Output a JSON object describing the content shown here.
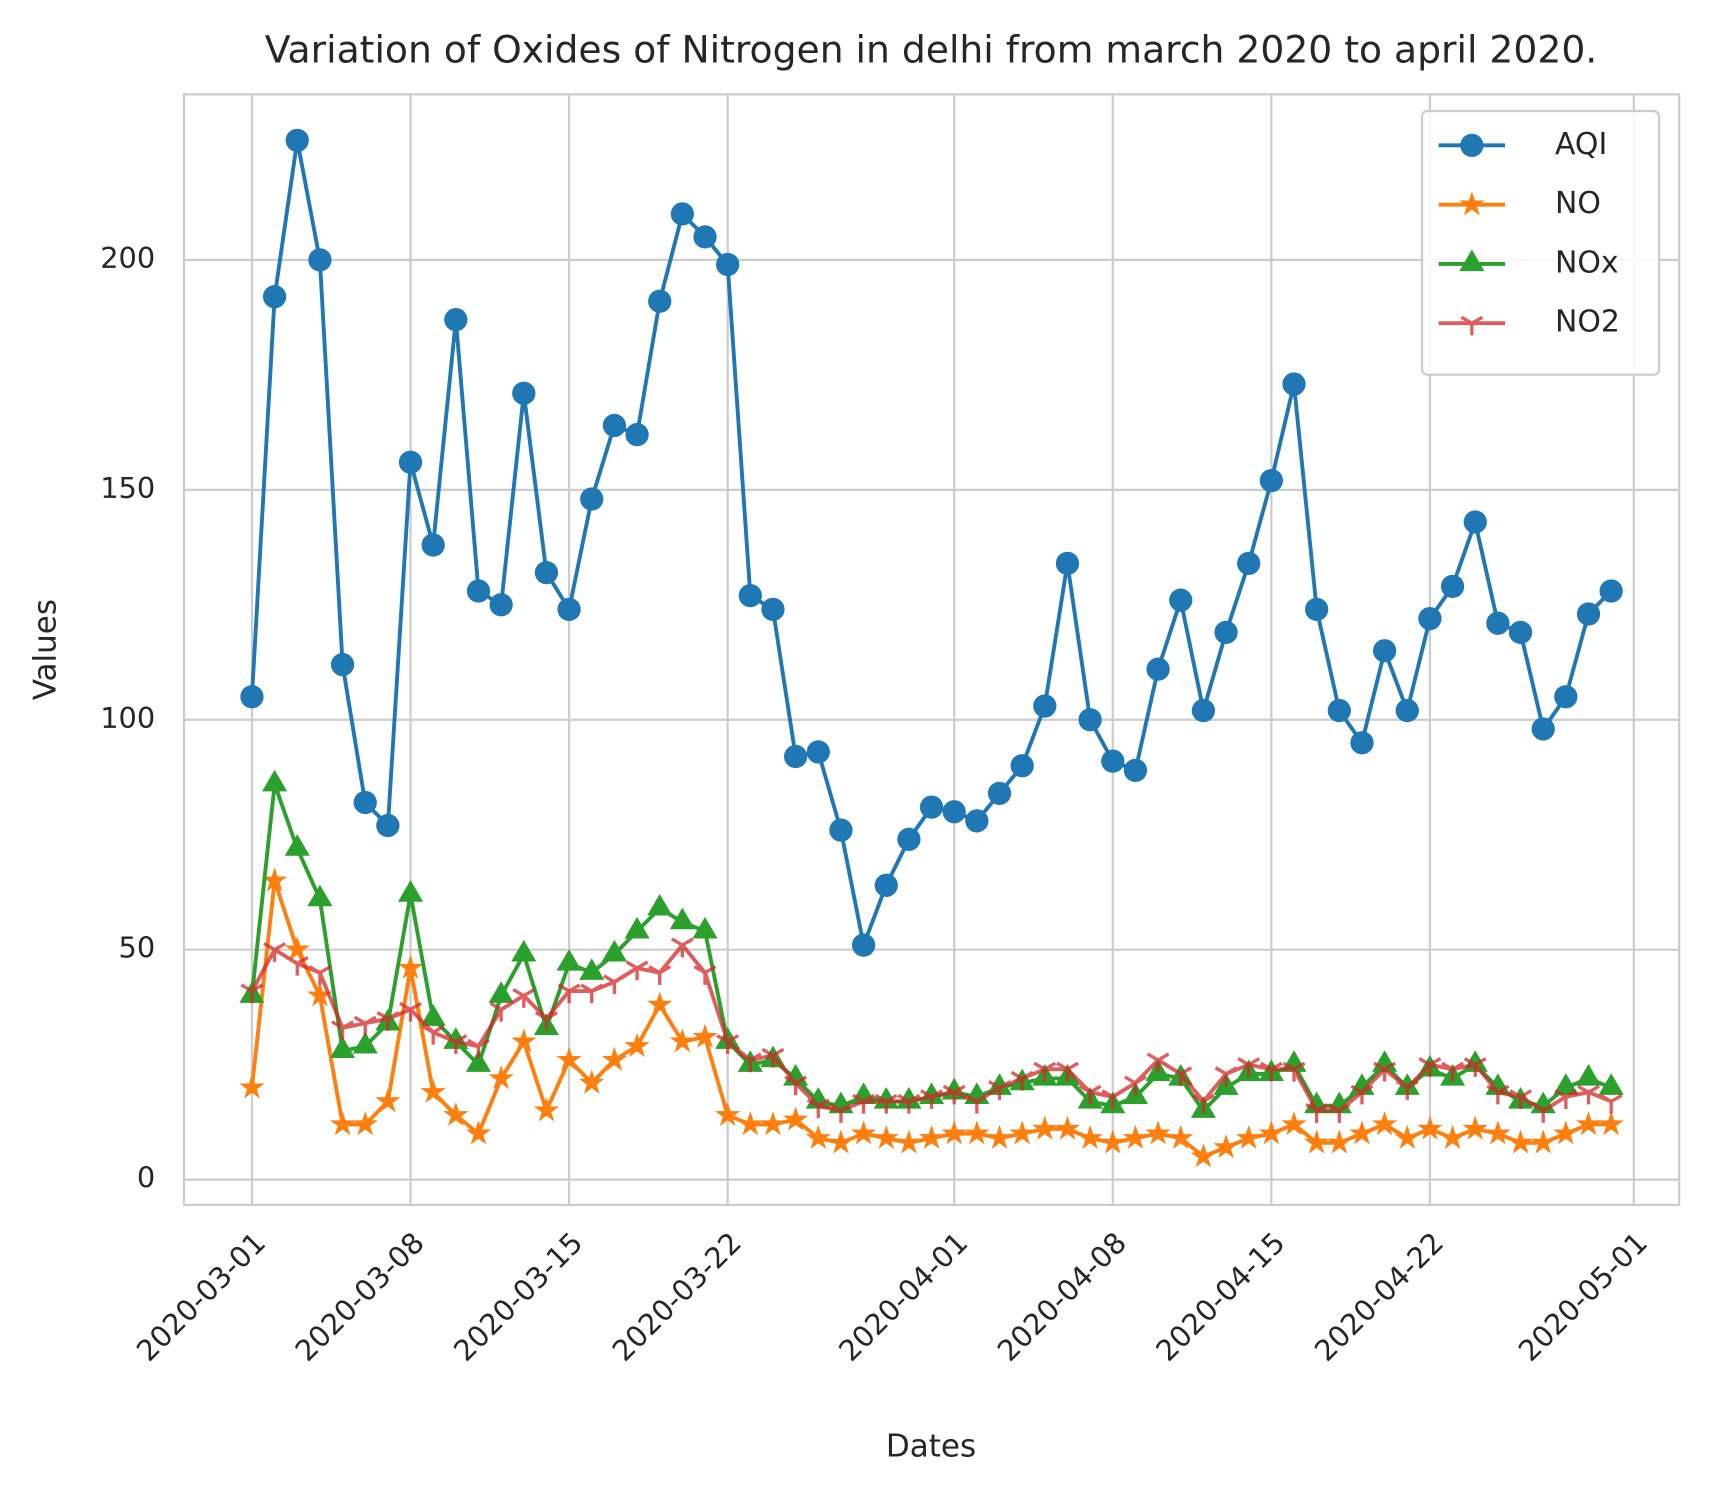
{
  "chart_data": {
    "type": "line",
    "title": "Variation of Oxides of Nitrogen in delhi from march 2020 to april 2020.",
    "xlabel": "Dates",
    "ylabel": "Values",
    "x": [
      "2020-03-01",
      "2020-03-02",
      "2020-03-03",
      "2020-03-04",
      "2020-03-05",
      "2020-03-06",
      "2020-03-07",
      "2020-03-08",
      "2020-03-09",
      "2020-03-10",
      "2020-03-11",
      "2020-03-12",
      "2020-03-13",
      "2020-03-14",
      "2020-03-15",
      "2020-03-16",
      "2020-03-17",
      "2020-03-18",
      "2020-03-19",
      "2020-03-20",
      "2020-03-21",
      "2020-03-22",
      "2020-03-23",
      "2020-03-24",
      "2020-03-25",
      "2020-03-26",
      "2020-03-27",
      "2020-03-28",
      "2020-03-29",
      "2020-03-30",
      "2020-03-31",
      "2020-04-01",
      "2020-04-02",
      "2020-04-03",
      "2020-04-04",
      "2020-04-05",
      "2020-04-06",
      "2020-04-07",
      "2020-04-08",
      "2020-04-09",
      "2020-04-10",
      "2020-04-11",
      "2020-04-12",
      "2020-04-13",
      "2020-04-14",
      "2020-04-15",
      "2020-04-16",
      "2020-04-17",
      "2020-04-18",
      "2020-04-19",
      "2020-04-20",
      "2020-04-21",
      "2020-04-22",
      "2020-04-23",
      "2020-04-24",
      "2020-04-25",
      "2020-04-26",
      "2020-04-27",
      "2020-04-28",
      "2020-04-29",
      "2020-04-30"
    ],
    "series": [
      {
        "name": "AQI",
        "color": "#1f77b4",
        "marker": "circle",
        "values": [
          105,
          192,
          226,
          200,
          112,
          82,
          77,
          156,
          138,
          187,
          128,
          125,
          171,
          132,
          124,
          148,
          164,
          162,
          191,
          210,
          205,
          199,
          127,
          124,
          92,
          93,
          76,
          51,
          64,
          74,
          81,
          80,
          78,
          84,
          90,
          103,
          134,
          100,
          91,
          89,
          111,
          126,
          102,
          119,
          134,
          152,
          173,
          124,
          102,
          95,
          115,
          102,
          122,
          129,
          143,
          121,
          119,
          98,
          105,
          123,
          128
        ]
      },
      {
        "name": "NO",
        "color": "#ff7f0e",
        "marker": "star",
        "values": [
          20,
          65,
          50,
          40,
          12,
          12,
          17,
          46,
          19,
          14,
          10,
          22,
          30,
          15,
          26,
          21,
          26,
          29,
          38,
          30,
          31,
          14,
          12,
          12,
          13,
          9,
          8,
          10,
          9,
          8,
          9,
          10,
          10,
          9,
          10,
          11,
          11,
          9,
          8,
          9,
          10,
          9,
          5,
          7,
          9,
          10,
          12,
          8,
          8,
          10,
          12,
          9,
          11,
          9,
          11,
          10,
          8,
          8,
          10,
          12,
          12
        ]
      },
      {
        "name": "NOx",
        "color": "#2ca02c",
        "marker": "triangle",
        "values": [
          40,
          86,
          72,
          61,
          28,
          29,
          34,
          62,
          35,
          30,
          25,
          40,
          49,
          33,
          47,
          45,
          49,
          54,
          59,
          56,
          54,
          30,
          25,
          26,
          22,
          17,
          16,
          18,
          17,
          17,
          18,
          19,
          18,
          20,
          21,
          22,
          22,
          17,
          16,
          18,
          23,
          22,
          15,
          20,
          23,
          23,
          25,
          16,
          16,
          20,
          25,
          20,
          24,
          22,
          25,
          20,
          17,
          16,
          20,
          22,
          20
        ]
      },
      {
        "name": "NO2",
        "color": "#d62728",
        "opacity": 0.75,
        "marker": "tri-down",
        "values": [
          41,
          50,
          47,
          45,
          33,
          34,
          35,
          37,
          32,
          30,
          29,
          37,
          40,
          35,
          41,
          41,
          43,
          46,
          45,
          51,
          45,
          30,
          26,
          27,
          21,
          16,
          15,
          17,
          17,
          17,
          18,
          19,
          17,
          20,
          22,
          24,
          24,
          19,
          18,
          21,
          26,
          23,
          17,
          23,
          25,
          24,
          24,
          15,
          15,
          19,
          24,
          20,
          25,
          24,
          25,
          19,
          18,
          15,
          18,
          19,
          17
        ]
      }
    ],
    "xlim": [
      "2020-02-27",
      "2020-05-03"
    ],
    "xticks": [
      "2020-03-01",
      "2020-03-08",
      "2020-03-15",
      "2020-03-22",
      "2020-04-01",
      "2020-04-08",
      "2020-04-15",
      "2020-04-22",
      "2020-05-01"
    ],
    "ylim": [
      -5.5,
      236
    ],
    "yticks": [
      0,
      50,
      100,
      150,
      200
    ],
    "grid": true,
    "legend": "upper right"
  }
}
